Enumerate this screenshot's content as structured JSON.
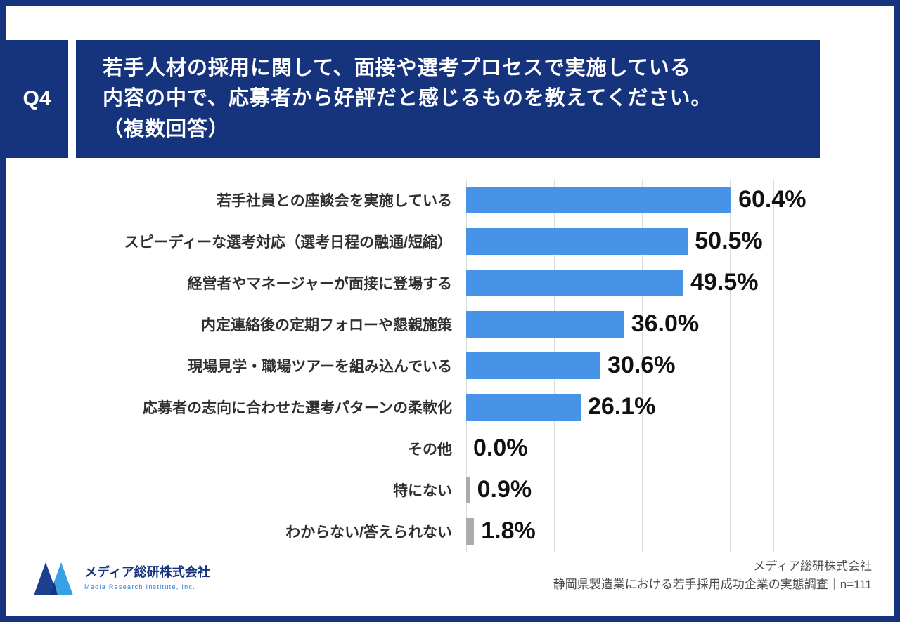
{
  "theme": {
    "navy": "#16337E",
    "bar_color": "#4793E8",
    "muted_bar_color": "#ABABAB",
    "gridline_color": "#dcdcdc"
  },
  "header": {
    "q_label": "Q4",
    "title": "若手人材の採用に関して、面接や選考プロセスで実施している\n内容の中で、応募者から好評だと感じるものを教えてください。\n（複数回答）"
  },
  "chart_data": {
    "type": "bar",
    "orientation": "horizontal",
    "categories": [
      "若手社員との座談会を実施している",
      "スピーディーな選考対応（選考日程の融通/短縮）",
      "経営者やマネージャーが面接に登場する",
      "内定連絡後の定期フォローや懇親施策",
      "現場見学・職場ツアーを組み込んでいる",
      "応募者の志向に合わせた選考パターンの柔軟化",
      "その他",
      "特にない",
      "わからない/答えられない"
    ],
    "values": [
      60.4,
      50.5,
      49.5,
      36.0,
      30.6,
      26.1,
      0.0,
      0.9,
      1.8
    ],
    "value_labels": [
      "60.4%",
      "50.5%",
      "49.5%",
      "36.0%",
      "30.6%",
      "26.1%",
      "0.0%",
      "0.9%",
      "1.8%"
    ],
    "xlim": [
      0,
      70
    ],
    "gridline_interval": 10,
    "grid": true,
    "legend": false,
    "title": "",
    "xlabel": "",
    "ylabel": "",
    "bar_color": "#4793E8",
    "muted_bar_color": "#ABABAB",
    "muted_indices": [
      7,
      8
    ]
  },
  "footer": {
    "logo_text": "メディア総研株式会社",
    "logo_subtext": "Media Research Institute, Inc.",
    "credit_line1": "メディア総研株式会社",
    "credit_line2": "静岡県製造業における若手採用成功企業の実態調査｜n=111"
  }
}
